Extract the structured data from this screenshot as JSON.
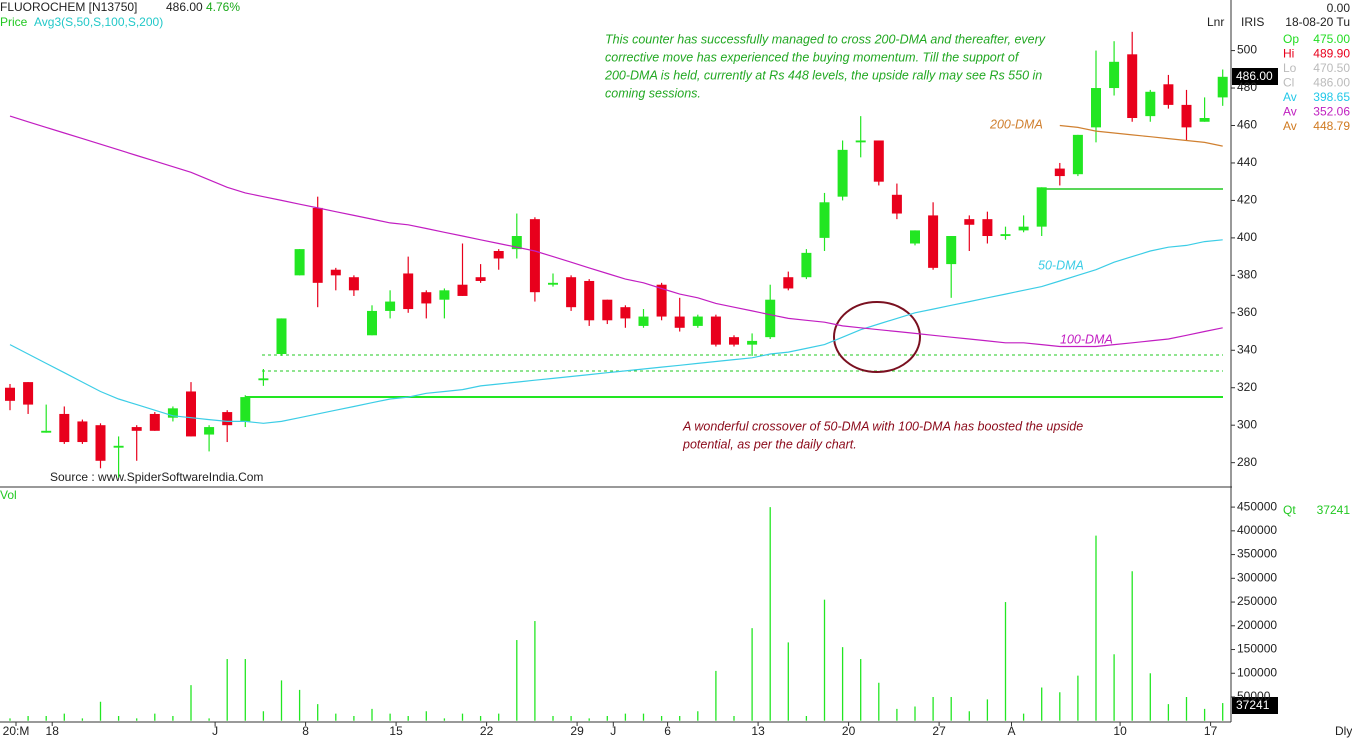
{
  "header": {
    "symbol": "FLUOROCHEM [N13750]",
    "price": "486.00",
    "change": "4.76%",
    "price_label": "Price",
    "avg_label": "Avg3(S,50,S,100,S,200)",
    "mode": "Lnr",
    "source": "Source : www.SpiderSoftwareIndia.Com",
    "vol_label": "Vol",
    "period": "Dly"
  },
  "info": {
    "title": "IRIS",
    "top_value": "0.00",
    "date": "18-08-20 Tu",
    "rows": [
      {
        "label": "Op",
        "value": "475.00",
        "color": "#22dd22"
      },
      {
        "label": "Hi",
        "value": "489.90",
        "color": "#e8001c"
      },
      {
        "label": "Lo",
        "value": "470.50",
        "color": "#bbbbbb"
      },
      {
        "label": "Cl",
        "value": "486.00",
        "color": "#bbbbbb"
      },
      {
        "label": "Av",
        "value": "398.65",
        "color": "#22c8e8"
      },
      {
        "label": "Av",
        "value": "352.06",
        "color": "#c020c0"
      },
      {
        "label": "Av",
        "value": "448.79",
        "color": "#d07a20"
      }
    ],
    "qt_label": "Qt"
  },
  "annotations": [
    {
      "lines": [
        "This counter has successfully managed to cross 200-DMA and thereafter, every",
        "corrective move has experienced the buying momentum. Till the support of",
        "200-DMA is held, currently at Rs 448 levels, the upside rally may see Rs 550 in",
        "coming sessions."
      ],
      "color": "#22a822"
    },
    {
      "lines": [
        "A wonderful crossover of 50-DMA with 100-DMA has boosted the upside",
        "potential, as per the daily chart."
      ],
      "color": "#8b0a1a"
    }
  ],
  "chart_data": {
    "type": "candlestick",
    "categories": [
      "20:M",
      null,
      "18",
      null,
      null,
      null,
      null,
      null,
      null,
      null,
      null,
      "J",
      null,
      null,
      null,
      null,
      "8",
      null,
      null,
      null,
      null,
      "15",
      null,
      null,
      null,
      null,
      "22",
      null,
      null,
      null,
      null,
      "29",
      null,
      "J",
      null,
      null,
      "6",
      null,
      null,
      null,
      null,
      "13",
      null,
      null,
      null,
      null,
      "20",
      null,
      null,
      null,
      null,
      "27",
      null,
      null,
      null,
      "A",
      null,
      null,
      null,
      null,
      null,
      "10",
      null,
      null,
      null,
      null,
      "17",
      null
    ],
    "open": [
      320,
      323,
      296,
      306,
      302,
      300,
      288,
      299,
      306,
      304,
      318,
      295,
      307,
      302,
      324,
      338,
      380,
      416,
      383,
      379,
      348,
      361,
      381,
      371,
      367,
      375,
      379,
      393,
      394,
      410,
      375,
      379,
      377,
      367,
      363,
      353,
      375,
      358,
      353,
      358,
      347,
      343,
      347,
      379,
      379,
      400,
      422,
      451,
      452,
      423,
      397,
      412,
      386,
      410,
      410,
      401,
      404,
      406,
      437,
      434,
      459,
      480,
      498,
      465,
      482,
      471,
      462,
      475
    ],
    "high": [
      322,
      323,
      311,
      310,
      303,
      301,
      294,
      300,
      307,
      310,
      323,
      300,
      308,
      316,
      330,
      357,
      394,
      422,
      384,
      380,
      364,
      372,
      390,
      372,
      373,
      397,
      386,
      394,
      413,
      411,
      381,
      380,
      378,
      367,
      364,
      362,
      376,
      368,
      359,
      359,
      348,
      349,
      375,
      382,
      394,
      424,
      452,
      465,
      452,
      429,
      404,
      419,
      401,
      412,
      414,
      406,
      412,
      427,
      440,
      455,
      500,
      505,
      510,
      479,
      487,
      479,
      475,
      489.9
    ],
    "low": [
      308,
      306,
      296,
      290,
      290,
      277,
      272,
      281,
      297,
      302,
      294,
      286,
      291,
      299,
      321,
      337,
      380,
      363,
      372,
      369,
      348,
      357,
      360,
      357,
      357,
      369,
      376,
      383,
      389,
      366,
      374,
      361,
      353,
      354,
      352,
      352,
      356,
      350,
      352,
      342,
      342,
      337,
      346,
      372,
      378,
      393,
      420,
      443,
      428,
      410,
      396,
      383,
      368,
      393,
      397,
      399,
      403,
      401,
      428,
      433,
      451,
      476,
      462,
      462,
      469,
      452,
      462,
      470.5
    ],
    "close": [
      313,
      311,
      297,
      291,
      291,
      281,
      289,
      297,
      297,
      309,
      294,
      299,
      300,
      315,
      325,
      357,
      394,
      376,
      380,
      372,
      361,
      366,
      362,
      365,
      372,
      369,
      377,
      389,
      401,
      371,
      376,
      363,
      356,
      356,
      357,
      358,
      358,
      352,
      358,
      343,
      343,
      345,
      367,
      373,
      392,
      419,
      447,
      452,
      430,
      413,
      404,
      384,
      401,
      407,
      401,
      402,
      406,
      427,
      433,
      455,
      480,
      494,
      464,
      478,
      471,
      459,
      464,
      486
    ],
    "up_color": "#22e622",
    "down_color": "#e8001c",
    "ylim": [
      267,
      527
    ],
    "yticks": [
      280,
      300,
      320,
      340,
      360,
      380,
      400,
      420,
      440,
      460,
      480,
      500
    ],
    "series": [
      {
        "name": "50-DMA",
        "color": "#3ccde6",
        "values": [
          343,
          338,
          333,
          328,
          323,
          318,
          314,
          311,
          308,
          305,
          304,
          303,
          302,
          302,
          301,
          302,
          304,
          306,
          308,
          310,
          312,
          314,
          315,
          317,
          318,
          319,
          321,
          322,
          323,
          324,
          325,
          326,
          327,
          328,
          329,
          330,
          331,
          332,
          333,
          334,
          335,
          336,
          338,
          339,
          341,
          343,
          347,
          351,
          354,
          357,
          360,
          362,
          364,
          366,
          368,
          370,
          372,
          374,
          377,
          380,
          383,
          387,
          390,
          393,
          395,
          396,
          398,
          399
        ]
      },
      {
        "name": "100-DMA",
        "color": "#c21ec2",
        "values": [
          465,
          462,
          459,
          456,
          453,
          450,
          447,
          444,
          441,
          438,
          435,
          431,
          427,
          424,
          422,
          420,
          418,
          416,
          414,
          412,
          410,
          408,
          407,
          405,
          403,
          401,
          399,
          397,
          395,
          393,
          390,
          387,
          384,
          381,
          378,
          376,
          373,
          370,
          368,
          365,
          363,
          361,
          359,
          357,
          356,
          355,
          353,
          352,
          351,
          350,
          349,
          348,
          347,
          346,
          345,
          344,
          344,
          343,
          342,
          342,
          342,
          343,
          344,
          345,
          346,
          348,
          350,
          352
        ]
      },
      {
        "name": "200-DMA",
        "color": "#d08030",
        "values": [
          null,
          null,
          null,
          null,
          null,
          null,
          null,
          null,
          null,
          null,
          null,
          null,
          null,
          null,
          null,
          null,
          null,
          null,
          null,
          null,
          null,
          null,
          null,
          null,
          null,
          null,
          null,
          null,
          null,
          null,
          null,
          null,
          null,
          null,
          null,
          null,
          null,
          null,
          null,
          null,
          null,
          null,
          null,
          null,
          null,
          null,
          null,
          null,
          null,
          null,
          null,
          null,
          null,
          null,
          null,
          null,
          null,
          null,
          460,
          459,
          457,
          456,
          455,
          454,
          453,
          452,
          451,
          449
        ]
      }
    ],
    "volume": {
      "color": "#22e622",
      "ylim": [
        0,
        486000
      ],
      "yticks": [
        50000,
        100000,
        150000,
        200000,
        250000,
        300000,
        350000,
        400000,
        450000
      ],
      "values": [
        5000,
        10000,
        10000,
        15000,
        5000,
        40000,
        10000,
        5000,
        15000,
        10000,
        75000,
        5000,
        130000,
        130000,
        20000,
        85000,
        65000,
        35000,
        15000,
        10000,
        25000,
        15000,
        10000,
        20000,
        5000,
        15000,
        10000,
        15000,
        170000,
        210000,
        10000,
        10000,
        5000,
        10000,
        15000,
        15000,
        10000,
        10000,
        20000,
        105000,
        10000,
        195000,
        450000,
        165000,
        10000,
        255000,
        155000,
        130000,
        80000,
        25000,
        30000,
        50000,
        50000,
        20000,
        45000,
        250000,
        15000,
        70000,
        60000,
        95000,
        390000,
        140000,
        315000,
        100000,
        35000,
        50000,
        25000,
        37241
      ]
    }
  }
}
